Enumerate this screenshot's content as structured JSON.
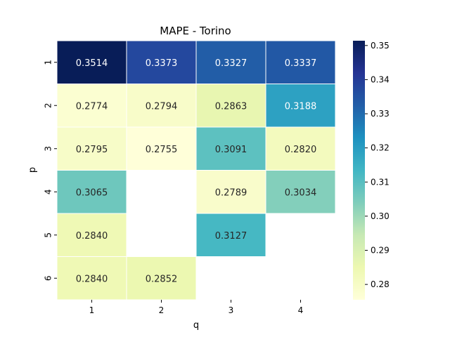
{
  "chart_data": {
    "type": "heatmap",
    "title": "MAPE - Torino",
    "xlabel": "q",
    "ylabel": "p",
    "x_categories": [
      "1",
      "2",
      "3",
      "4"
    ],
    "y_categories": [
      "1",
      "2",
      "3",
      "4",
      "5",
      "6"
    ],
    "values": [
      [
        0.3514,
        0.3373,
        0.3327,
        0.3337
      ],
      [
        0.2774,
        0.2794,
        0.2863,
        0.3188
      ],
      [
        0.2795,
        0.2755,
        0.3091,
        0.282
      ],
      [
        0.3065,
        null,
        0.2789,
        0.3034
      ],
      [
        0.284,
        null,
        0.3127,
        null
      ],
      [
        0.284,
        0.2852,
        null,
        null
      ]
    ],
    "colormap": "YlGnBu",
    "vmin": 0.2755,
    "vmax": 0.3514,
    "colorbar_ticks": [
      "0.28",
      "0.29",
      "0.30",
      "0.31",
      "0.32",
      "0.33",
      "0.34",
      "0.35"
    ],
    "value_format": "4 decimals",
    "grid_line_color": "#ffffff"
  }
}
